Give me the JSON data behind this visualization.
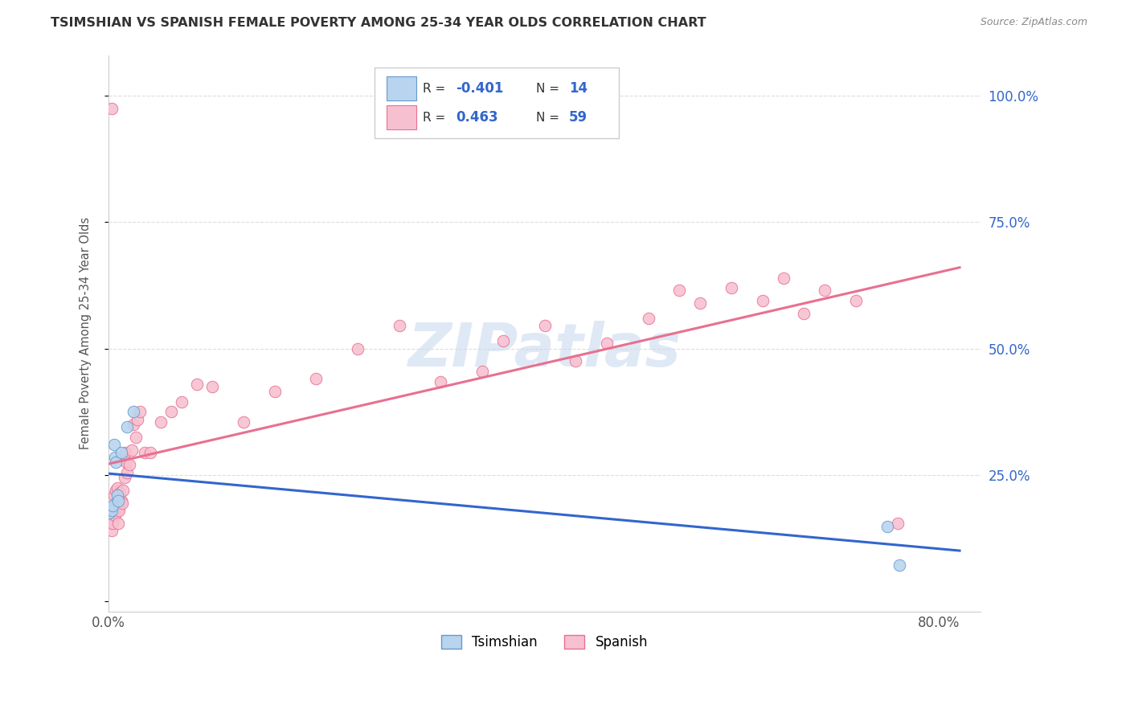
{
  "title": "TSIMSHIAN VS SPANISH FEMALE POVERTY AMONG 25-34 YEAR OLDS CORRELATION CHART",
  "source": "Source: ZipAtlas.com",
  "ylabel": "Female Poverty Among 25-34 Year Olds",
  "xlim": [
    0.0,
    0.84
  ],
  "ylim": [
    -0.02,
    1.08
  ],
  "background_color": "#ffffff",
  "grid_color": "#dddddd",
  "tsimshian_fill": "#b8d4ee",
  "tsimshian_edge": "#6699cc",
  "spanish_fill": "#f7c0d0",
  "spanish_edge": "#e87090",
  "tsimshian_line": "#3366cc",
  "spanish_line": "#e87090",
  "legend_R_color": "#3366cc",
  "legend_N_color": "#3366cc",
  "ytick_vals": [
    0.0,
    0.25,
    0.5,
    0.75,
    1.0
  ],
  "ytick_labels": [
    "",
    "25.0%",
    "50.0%",
    "75.0%",
    "100.0%"
  ],
  "xtick_vals": [
    0.0,
    0.8
  ],
  "xtick_labels": [
    "0.0%",
    "80.0%"
  ],
  "tsimshian_x": [
    0.001,
    0.002,
    0.003,
    0.004,
    0.005,
    0.006,
    0.007,
    0.008,
    0.009,
    0.012,
    0.018,
    0.024,
    0.75,
    0.762
  ],
  "tsimshian_y": [
    0.175,
    0.185,
    0.18,
    0.19,
    0.31,
    0.285,
    0.275,
    0.21,
    0.2,
    0.295,
    0.345,
    0.375,
    0.148,
    0.072
  ],
  "spanish_x": [
    0.001,
    0.002,
    0.003,
    0.003,
    0.004,
    0.004,
    0.005,
    0.005,
    0.006,
    0.006,
    0.007,
    0.007,
    0.008,
    0.009,
    0.009,
    0.01,
    0.011,
    0.012,
    0.013,
    0.014,
    0.015,
    0.016,
    0.017,
    0.018,
    0.02,
    0.022,
    0.024,
    0.026,
    0.028,
    0.03,
    0.035,
    0.04,
    0.05,
    0.06,
    0.07,
    0.085,
    0.1,
    0.13,
    0.16,
    0.2,
    0.24,
    0.28,
    0.32,
    0.36,
    0.38,
    0.42,
    0.45,
    0.48,
    0.52,
    0.55,
    0.57,
    0.6,
    0.63,
    0.65,
    0.67,
    0.69,
    0.72,
    0.76,
    0.003
  ],
  "spanish_y": [
    0.17,
    0.165,
    0.17,
    0.14,
    0.185,
    0.155,
    0.21,
    0.185,
    0.19,
    0.17,
    0.22,
    0.195,
    0.225,
    0.155,
    0.185,
    0.18,
    0.215,
    0.2,
    0.195,
    0.22,
    0.245,
    0.295,
    0.275,
    0.255,
    0.27,
    0.3,
    0.35,
    0.325,
    0.36,
    0.375,
    0.295,
    0.295,
    0.355,
    0.375,
    0.395,
    0.43,
    0.425,
    0.355,
    0.415,
    0.44,
    0.5,
    0.545,
    0.435,
    0.455,
    0.515,
    0.545,
    0.475,
    0.51,
    0.56,
    0.615,
    0.59,
    0.62,
    0.595,
    0.64,
    0.57,
    0.615,
    0.595,
    0.155,
    0.975
  ]
}
